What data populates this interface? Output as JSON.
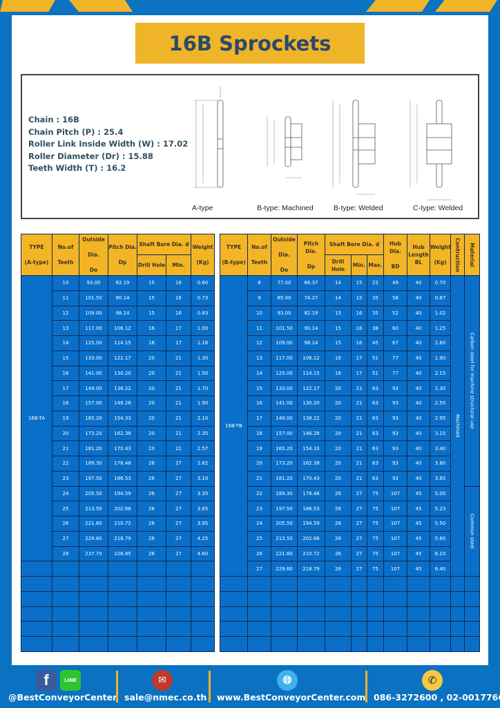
{
  "title": "16B Sprockets",
  "specs": [
    "Chain  :  16B",
    "Chain Pitch (P)  :  25.4",
    "Roller Link Inside Width (W)  :  17.02",
    "Roller Diameter (Dr)  : 15.88",
    "Teeth Width (T)  :  16.2"
  ],
  "diagram_captions": [
    "A-type",
    "B-type: Machined",
    "B-type: Welded",
    "C-type: Welded"
  ],
  "colors": {
    "frame_blue": "#0a72c0",
    "accent_yellow": "#f0b429",
    "cell_blue": "#0a6fc8",
    "title_text": "#2a4a6b"
  },
  "table_a": {
    "headers": {
      "type": "TYPE",
      "type_sub": "(A-type)",
      "teeth": "No.of",
      "teeth_sub": "Teeth",
      "do": "Outside",
      "do_sub": "Dia.",
      "do_sub2": "Do",
      "dp": "Pitch Dia.",
      "dp_sub": "Dp",
      "bore": "Shaft Bore Dia. d",
      "drill": "Drill Hole",
      "min": "Min.",
      "weight": "Weight",
      "weight_sub": "(Kg)"
    },
    "type_label": "16B-TA",
    "rows": [
      [
        "10",
        "93.00",
        "82.19",
        "15",
        "16",
        "0.60"
      ],
      [
        "11",
        "101.50",
        "90.14",
        "15",
        "16",
        "0.73"
      ],
      [
        "12",
        "109.00",
        "98.14",
        "15",
        "16",
        "0.83"
      ],
      [
        "13",
        "117.00",
        "106.12",
        "16",
        "17",
        "1.00"
      ],
      [
        "14",
        "125.00",
        "114.15",
        "16",
        "17",
        "1.16"
      ],
      [
        "15",
        "133.00",
        "122.17",
        "20",
        "21",
        "1.30"
      ],
      [
        "16",
        "141.00",
        "130.20",
        "20",
        "21",
        "1.50"
      ],
      [
        "17",
        "149.00",
        "138.22",
        "20",
        "21",
        "1.70"
      ],
      [
        "18",
        "157.00",
        "146.28",
        "20",
        "21",
        "1.90"
      ],
      [
        "19",
        "165.20",
        "154.33",
        "20",
        "21",
        "2.10"
      ],
      [
        "20",
        "173.20",
        "162.38",
        "20",
        "21",
        "2.35"
      ],
      [
        "21",
        "181.20",
        "170.43",
        "20",
        "21",
        "2.57"
      ],
      [
        "22",
        "189.30",
        "178.48",
        "26",
        "27",
        "2.82"
      ],
      [
        "23",
        "197.50",
        "186.53",
        "26",
        "27",
        "3.10"
      ],
      [
        "24",
        "205.50",
        "194.59",
        "26",
        "27",
        "3.35"
      ],
      [
        "25",
        "213.50",
        "202.66",
        "26",
        "27",
        "3.65"
      ],
      [
        "26",
        "221.60",
        "210.72",
        "26",
        "27",
        "3.95"
      ],
      [
        "27",
        "229.60",
        "218.79",
        "26",
        "27",
        "4.25"
      ],
      [
        "28",
        "237.70",
        "226.85",
        "26",
        "27",
        "4.60"
      ]
    ]
  },
  "table_b": {
    "headers": {
      "type": "TYPE",
      "type_sub": "(B-type)",
      "teeth": "No.of",
      "teeth_sub": "Teeth",
      "do": "Outside",
      "do_sub": "Dia.",
      "do_sub2": "Do",
      "dp": "Pitch Dia.",
      "dp_sub": "Dp",
      "bore": "Shaft Bore Dia. d",
      "drill": "Drill Hole",
      "min": "Min.",
      "max": "Max.",
      "hub": "Hub Dia.",
      "hub_sub": "BD",
      "hublen": "Hub",
      "hublen_sub": "Length",
      "hublen_sub2": "BL",
      "weight": "Weight",
      "weight_sub": "(Kg)",
      "construction": "Contruction",
      "material": "Material"
    },
    "type_label": "16B-TB",
    "construction": "Machined",
    "material_1": "Carbon steel for machine structural use",
    "material_2": "Common steel",
    "rows": [
      [
        "8",
        "77.00",
        "66.37",
        "14",
        "15",
        "22",
        "49",
        "40",
        "0.70"
      ],
      [
        "9",
        "85.00",
        "74.27",
        "14",
        "15",
        "35",
        "58",
        "40",
        "0.87"
      ],
      [
        "10",
        "93.00",
        "82.19",
        "15",
        "16",
        "35",
        "52",
        "40",
        "1.02"
      ],
      [
        "11",
        "101.50",
        "90.14",
        "15",
        "16",
        "38",
        "60",
        "40",
        "1.25"
      ],
      [
        "12",
        "109.00",
        "98.14",
        "15",
        "16",
        "45",
        "67",
        "40",
        "1.60"
      ],
      [
        "13",
        "117.00",
        "106.12",
        "16",
        "17",
        "51",
        "77",
        "40",
        "1.90"
      ],
      [
        "14",
        "125.00",
        "114.15",
        "16",
        "17",
        "51",
        "77",
        "40",
        "2.15"
      ],
      [
        "15",
        "133.00",
        "122.17",
        "20",
        "21",
        "63",
        "93",
        "40",
        "2.30"
      ],
      [
        "16",
        "141.00",
        "130.20",
        "20",
        "21",
        "63",
        "93",
        "40",
        "2.50"
      ],
      [
        "17",
        "149.00",
        "138.22",
        "20",
        "21",
        "63",
        "93",
        "40",
        "2.95"
      ],
      [
        "18",
        "157.00",
        "146.28",
        "20",
        "21",
        "63",
        "93",
        "40",
        "3.15"
      ],
      [
        "19",
        "165.20",
        "154.33",
        "20",
        "21",
        "63",
        "93",
        "40",
        "3.40"
      ],
      [
        "20",
        "173.20",
        "162.38",
        "20",
        "21",
        "63",
        "93",
        "40",
        "3.60"
      ],
      [
        "21",
        "181.20",
        "170.43",
        "20",
        "21",
        "63",
        "93",
        "40",
        "3.85"
      ],
      [
        "22",
        "189.30",
        "178.48",
        "26",
        "27",
        "75",
        "107",
        "45",
        "5.00"
      ],
      [
        "23",
        "197.50",
        "186.53",
        "26",
        "27",
        "75",
        "107",
        "45",
        "5.23"
      ],
      [
        "24",
        "205.50",
        "194.59",
        "26",
        "27",
        "75",
        "107",
        "45",
        "5.50"
      ],
      [
        "25",
        "213.50",
        "202.66",
        "26",
        "27",
        "75",
        "107",
        "45",
        "5.80"
      ],
      [
        "26",
        "221.60",
        "210.72",
        "26",
        "27",
        "75",
        "107",
        "45",
        "6.10"
      ],
      [
        "27",
        "229.60",
        "218.79",
        "26",
        "27",
        "75",
        "107",
        "45",
        "6.40"
      ]
    ]
  },
  "footer": {
    "social": "@BestConveyorCenter",
    "email": "sale@nmec.co.th",
    "website": "www.BestConveyorCenter.com",
    "phone": "086-3272600 , 02-0017766",
    "icons": [
      "facebook-icon",
      "line-icon",
      "mail-icon",
      "globe-icon",
      "phone-icon"
    ],
    "line_label": "LINE"
  }
}
